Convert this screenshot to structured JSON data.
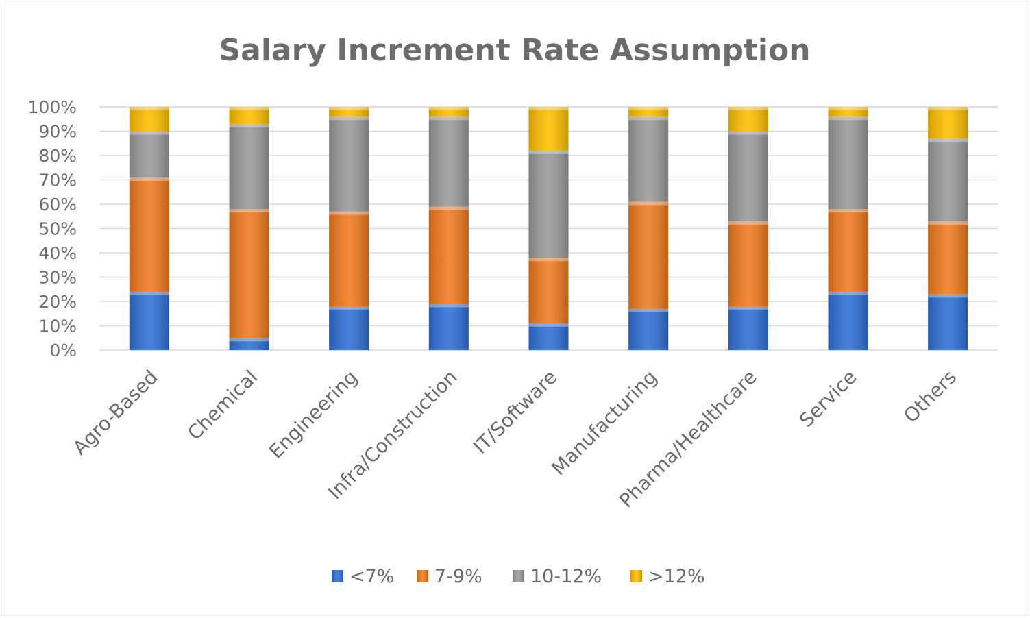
{
  "chart_data": {
    "type": "bar",
    "stacked": true,
    "title": "Salary Increment Rate Assumption",
    "xlabel": "",
    "ylabel": "",
    "ylim": [
      0,
      100
    ],
    "y_ticks": [
      "0%",
      "10%",
      "20%",
      "30%",
      "40%",
      "50%",
      "60%",
      "70%",
      "80%",
      "90%",
      "100%"
    ],
    "grid": true,
    "legend_position": "bottom",
    "categories": [
      "Agro-Based",
      "Chemical",
      "Engineering",
      "Infra/Construction",
      "IT/Software",
      "Manufacturing",
      "Pharma/Healthcare",
      "Service",
      "Others"
    ],
    "series": [
      {
        "name": "<7%",
        "color": "#2f6fd6",
        "values": [
          24,
          5,
          18,
          19,
          11,
          17,
          18,
          24,
          23
        ]
      },
      {
        "name": "7-9%",
        "color": "#f07a1e",
        "values": [
          47,
          53,
          39,
          40,
          27,
          44,
          35,
          34,
          30
        ]
      },
      {
        "name": "10-12%",
        "color": "#9a9a9a",
        "values": [
          19,
          35,
          39,
          37,
          44,
          35,
          37,
          38,
          34
        ]
      },
      {
        "name": ">12%",
        "color": "#ffc000",
        "values": [
          10,
          7,
          4,
          4,
          18,
          4,
          10,
          4,
          13
        ]
      }
    ]
  }
}
